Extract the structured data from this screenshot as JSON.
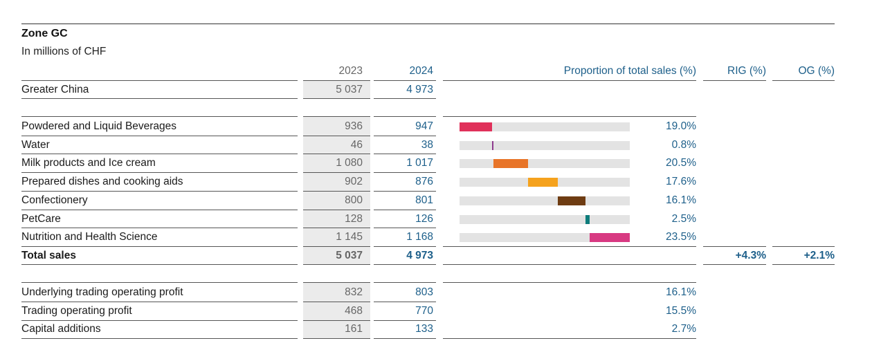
{
  "title": "Zone GC",
  "subtitle": "In millions of CHF",
  "headers": {
    "y2023": "2023",
    "y2024": "2024",
    "proportion": "Proportion of total sales (%)",
    "rig": "RIG (%)",
    "og": "OG (%)"
  },
  "region": {
    "label": "Greater China",
    "v2023": "5 037",
    "v2024": "4 973"
  },
  "categories": [
    {
      "label": "Powdered and Liquid Beverages",
      "v2023": "936",
      "v2024": "947",
      "share": "19.0%",
      "share_value": 19.0,
      "color": "#e0315a"
    },
    {
      "label": "Water",
      "v2023": "46",
      "v2024": "38",
      "share": "0.8%",
      "share_value": 0.8,
      "color": "#8e3b8e"
    },
    {
      "label": "Milk products and Ice cream",
      "v2023": "1 080",
      "v2024": "1 017",
      "share": "20.5%",
      "share_value": 20.5,
      "color": "#e87428"
    },
    {
      "label": "Prepared dishes and cooking aids",
      "v2023": "902",
      "v2024": "876",
      "share": "17.6%",
      "share_value": 17.6,
      "color": "#f5a21d"
    },
    {
      "label": "Confectionery",
      "v2023": "800",
      "v2024": "801",
      "share": "16.1%",
      "share_value": 16.1,
      "color": "#6e3c12"
    },
    {
      "label": "PetCare",
      "v2023": "128",
      "v2024": "126",
      "share": "2.5%",
      "share_value": 2.5,
      "color": "#0e7c7b"
    },
    {
      "label": "Nutrition and Health Science",
      "v2023": "1 145",
      "v2024": "1 168",
      "share": "23.5%",
      "share_value": 23.5,
      "color": "#d83a82"
    }
  ],
  "total": {
    "label": "Total sales",
    "v2023": "5 037",
    "v2024": "4 973",
    "rig": "+4.3%",
    "og": "+2.1%"
  },
  "metrics": [
    {
      "label": "Underlying trading operating profit",
      "v2023": "832",
      "v2024": "803",
      "share": "16.1%"
    },
    {
      "label": "Trading operating profit",
      "v2023": "468",
      "v2024": "770",
      "share": "15.5%"
    },
    {
      "label": "Capital additions",
      "v2023": "161",
      "v2024": "133",
      "share": "2.7%"
    }
  ]
}
